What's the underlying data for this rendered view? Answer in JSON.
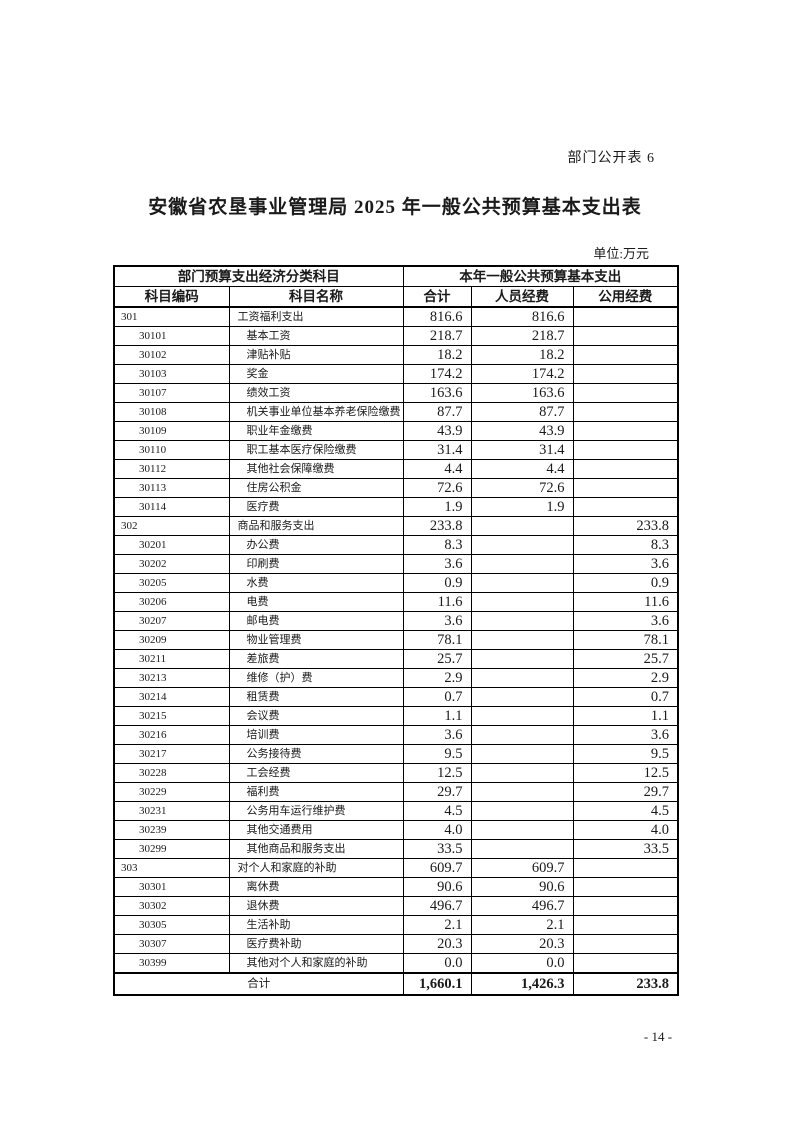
{
  "page": {
    "corner_note": "部门公开表 6",
    "title": "安徽省农垦事业管理局 2025 年一般公共预算基本支出表",
    "unit_label": "单位:万元",
    "page_number": "- 14 -"
  },
  "table": {
    "header_groups": {
      "left": "部门预算支出经济分类科目",
      "right": "本年一般公共预算基本支出"
    },
    "columns": [
      "科目编码",
      "科目名称",
      "合计",
      "人员经费",
      "公用经费"
    ],
    "rows": [
      {
        "code": "301",
        "name": "工资福利支出",
        "total": "816.6",
        "personnel": "816.6",
        "public": "",
        "level": 1
      },
      {
        "code": "30101",
        "name": "基本工资",
        "total": "218.7",
        "personnel": "218.7",
        "public": "",
        "level": 2
      },
      {
        "code": "30102",
        "name": "津贴补贴",
        "total": "18.2",
        "personnel": "18.2",
        "public": "",
        "level": 2
      },
      {
        "code": "30103",
        "name": "奖金",
        "total": "174.2",
        "personnel": "174.2",
        "public": "",
        "level": 2
      },
      {
        "code": "30107",
        "name": "绩效工资",
        "total": "163.6",
        "personnel": "163.6",
        "public": "",
        "level": 2
      },
      {
        "code": "30108",
        "name": "机关事业单位基本养老保险缴费",
        "total": "87.7",
        "personnel": "87.7",
        "public": "",
        "level": 2
      },
      {
        "code": "30109",
        "name": "职业年金缴费",
        "total": "43.9",
        "personnel": "43.9",
        "public": "",
        "level": 2
      },
      {
        "code": "30110",
        "name": "职工基本医疗保险缴费",
        "total": "31.4",
        "personnel": "31.4",
        "public": "",
        "level": 2
      },
      {
        "code": "30112",
        "name": "其他社会保障缴费",
        "total": "4.4",
        "personnel": "4.4",
        "public": "",
        "level": 2
      },
      {
        "code": "30113",
        "name": "住房公积金",
        "total": "72.6",
        "personnel": "72.6",
        "public": "",
        "level": 2
      },
      {
        "code": "30114",
        "name": "医疗费",
        "total": "1.9",
        "personnel": "1.9",
        "public": "",
        "level": 2
      },
      {
        "code": "302",
        "name": "商品和服务支出",
        "total": "233.8",
        "personnel": "",
        "public": "233.8",
        "level": 1
      },
      {
        "code": "30201",
        "name": "办公费",
        "total": "8.3",
        "personnel": "",
        "public": "8.3",
        "level": 2
      },
      {
        "code": "30202",
        "name": "印刷费",
        "total": "3.6",
        "personnel": "",
        "public": "3.6",
        "level": 2
      },
      {
        "code": "30205",
        "name": "水费",
        "total": "0.9",
        "personnel": "",
        "public": "0.9",
        "level": 2
      },
      {
        "code": "30206",
        "name": "电费",
        "total": "11.6",
        "personnel": "",
        "public": "11.6",
        "level": 2
      },
      {
        "code": "30207",
        "name": "邮电费",
        "total": "3.6",
        "personnel": "",
        "public": "3.6",
        "level": 2
      },
      {
        "code": "30209",
        "name": "物业管理费",
        "total": "78.1",
        "personnel": "",
        "public": "78.1",
        "level": 2
      },
      {
        "code": "30211",
        "name": "差旅费",
        "total": "25.7",
        "personnel": "",
        "public": "25.7",
        "level": 2
      },
      {
        "code": "30213",
        "name": "维修（护）费",
        "total": "2.9",
        "personnel": "",
        "public": "2.9",
        "level": 2
      },
      {
        "code": "30214",
        "name": "租赁费",
        "total": "0.7",
        "personnel": "",
        "public": "0.7",
        "level": 2
      },
      {
        "code": "30215",
        "name": "会议费",
        "total": "1.1",
        "personnel": "",
        "public": "1.1",
        "level": 2
      },
      {
        "code": "30216",
        "name": "培训费",
        "total": "3.6",
        "personnel": "",
        "public": "3.6",
        "level": 2
      },
      {
        "code": "30217",
        "name": "公务接待费",
        "total": "9.5",
        "personnel": "",
        "public": "9.5",
        "level": 2
      },
      {
        "code": "30228",
        "name": "工会经费",
        "total": "12.5",
        "personnel": "",
        "public": "12.5",
        "level": 2
      },
      {
        "code": "30229",
        "name": "福利费",
        "total": "29.7",
        "personnel": "",
        "public": "29.7",
        "level": 2
      },
      {
        "code": "30231",
        "name": "公务用车运行维护费",
        "total": "4.5",
        "personnel": "",
        "public": "4.5",
        "level": 2
      },
      {
        "code": "30239",
        "name": "其他交通费用",
        "total": "4.0",
        "personnel": "",
        "public": "4.0",
        "level": 2
      },
      {
        "code": "30299",
        "name": "其他商品和服务支出",
        "total": "33.5",
        "personnel": "",
        "public": "33.5",
        "level": 2
      },
      {
        "code": "303",
        "name": "对个人和家庭的补助",
        "total": "609.7",
        "personnel": "609.7",
        "public": "",
        "level": 1
      },
      {
        "code": "30301",
        "name": "离休费",
        "total": "90.6",
        "personnel": "90.6",
        "public": "",
        "level": 2
      },
      {
        "code": "30302",
        "name": "退休费",
        "total": "496.7",
        "personnel": "496.7",
        "public": "",
        "level": 2
      },
      {
        "code": "30305",
        "name": "生活补助",
        "total": "2.1",
        "personnel": "2.1",
        "public": "",
        "level": 2
      },
      {
        "code": "30307",
        "name": "医疗费补助",
        "total": "20.3",
        "personnel": "20.3",
        "public": "",
        "level": 2
      },
      {
        "code": "30399",
        "name": "其他对个人和家庭的补助",
        "total": "0.0",
        "personnel": "0.0",
        "public": "",
        "level": 2
      }
    ],
    "total_row": {
      "label": "合计",
      "total": "1,660.1",
      "personnel": "1,426.3",
      "public": "233.8"
    }
  }
}
